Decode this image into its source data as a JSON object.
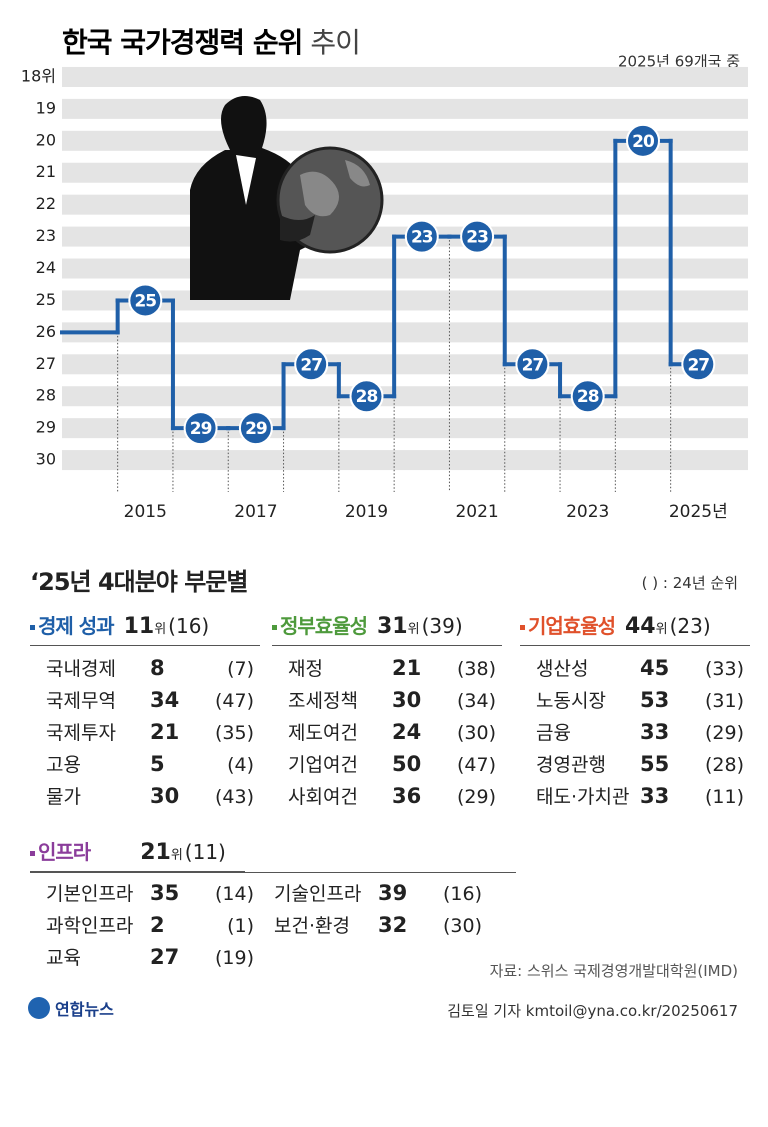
{
  "chart_data": {
    "type": "step",
    "title": "한국 국가경쟁력 순위",
    "title_suffix": "추이",
    "subtitle": "2025년 69개국 중",
    "categories": [
      null,
      "2015",
      null,
      "2017",
      null,
      "2019",
      null,
      "2021",
      null,
      "2023",
      null,
      "2025년"
    ],
    "values": [
      26,
      25,
      29,
      29,
      27,
      28,
      23,
      23,
      27,
      28,
      20,
      27
    ],
    "value_labels": [
      null,
      "25",
      "29",
      "29",
      "27",
      "28",
      "23",
      "23",
      "27",
      "28",
      "20",
      "27"
    ],
    "color": "#1f5fa8",
    "ylim": [
      17.5,
      31
    ],
    "inverted": true,
    "yticks": [
      {
        "value": 18,
        "label": "18위"
      },
      19,
      20,
      21,
      22,
      23,
      24,
      25,
      26,
      27,
      28,
      29,
      30
    ],
    "grid": true
  },
  "breakdown": {
    "title": "‘25년 4대분야 부문별",
    "note": "( ) : 24년 순위",
    "groups": [
      {
        "name": "경제 성과",
        "color": "#1f5fa8",
        "rank": "11",
        "unit": "위",
        "prev": "(16)",
        "items": [
          {
            "name": "국내경제",
            "rank": "8",
            "prev": "(7)"
          },
          {
            "name": "국제무역",
            "rank": "34",
            "prev": "(47)"
          },
          {
            "name": "국제투자",
            "rank": "21",
            "prev": "(35)"
          },
          {
            "name": "고용",
            "rank": "5",
            "prev": "(4)"
          },
          {
            "name": "물가",
            "rank": "30",
            "prev": "(43)"
          }
        ]
      },
      {
        "name": "정부효율성",
        "color": "#4e9a3c",
        "rank": "31",
        "unit": "위",
        "prev": "(39)",
        "items": [
          {
            "name": "재정",
            "rank": "21",
            "prev": "(38)"
          },
          {
            "name": "조세정책",
            "rank": "30",
            "prev": "(34)"
          },
          {
            "name": "제도여건",
            "rank": "24",
            "prev": "(30)"
          },
          {
            "name": "기업여건",
            "rank": "50",
            "prev": "(47)"
          },
          {
            "name": "사회여건",
            "rank": "36",
            "prev": "(29)"
          }
        ]
      },
      {
        "name": "기업효율성",
        "color": "#e0512b",
        "rank": "44",
        "unit": "위",
        "prev": "(23)",
        "items": [
          {
            "name": "생산성",
            "rank": "45",
            "prev": "(33)"
          },
          {
            "name": "노동시장",
            "rank": "53",
            "prev": "(31)"
          },
          {
            "name": "금융",
            "rank": "33",
            "prev": "(29)"
          },
          {
            "name": "경영관행",
            "rank": "55",
            "prev": "(28)"
          },
          {
            "name": "태도·가치관",
            "rank": "33",
            "prev": "(11)"
          }
        ]
      },
      {
        "name": "인프라",
        "color": "#8b3d9b",
        "rank": "21",
        "unit": "위",
        "prev": "(11)",
        "items": [
          {
            "name": "기본인프라",
            "rank": "35",
            "prev": "(14)"
          },
          {
            "name": "과학인프라",
            "rank": "2",
            "prev": "(1)"
          },
          {
            "name": "교육",
            "rank": "27",
            "prev": "(19)"
          },
          {
            "name": "기술인프라",
            "rank": "39",
            "prev": "(16)"
          },
          {
            "name": "보건·환경",
            "rank": "32",
            "prev": "(30)"
          }
        ]
      }
    ]
  },
  "source": "자료: 스위스 국제경영개발대학원(IMD)",
  "logo": "연합뉴스",
  "credit": "김토일 기자 kmtoil@yna.co.kr/20250617"
}
